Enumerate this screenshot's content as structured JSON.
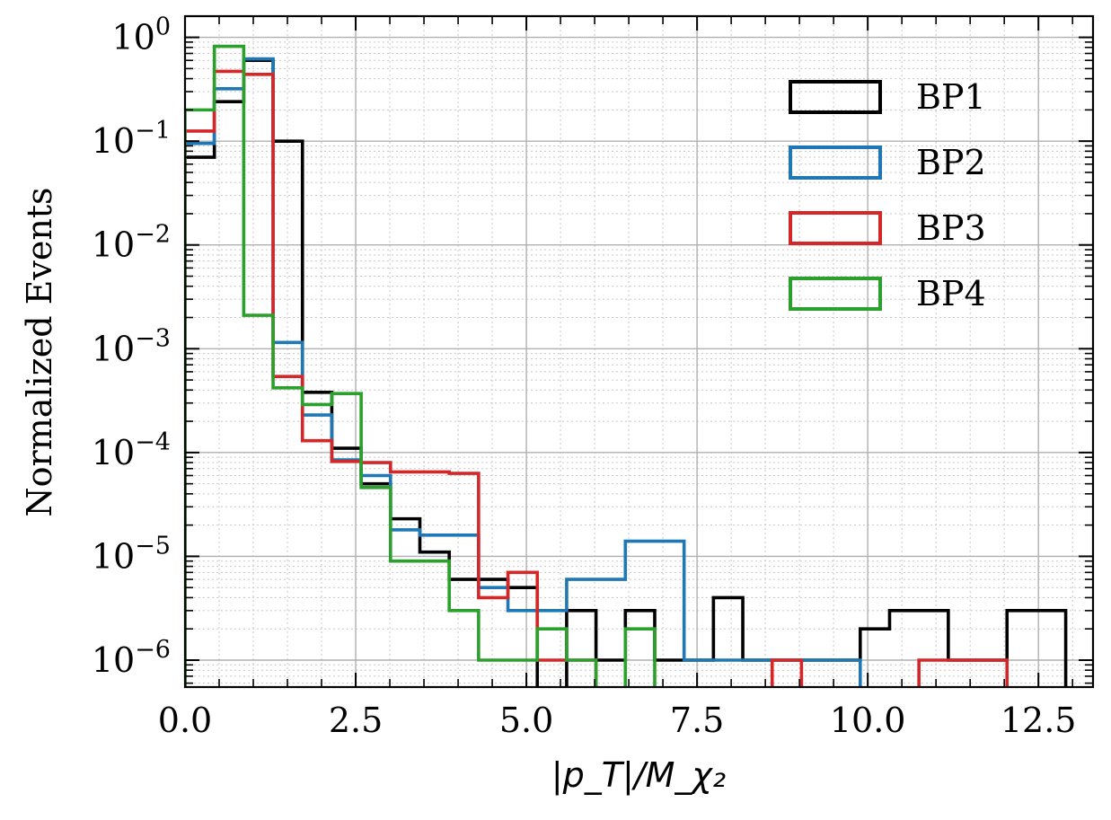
{
  "chart_data": {
    "type": "histogram-step",
    "xlabel": "|p_T|/M_χ₂",
    "ylabel": "Normalized Events",
    "xlim": [
      0,
      13.3
    ],
    "ylim": [
      5.5e-07,
      1.6
    ],
    "yscale": "log",
    "grid": true,
    "legend_position": "upper-right",
    "x_ticks": [
      {
        "value": 0,
        "label": "0.0"
      },
      {
        "value": 2.5,
        "label": "2.5"
      },
      {
        "value": 5,
        "label": "5.0"
      },
      {
        "value": 7.5,
        "label": "7.5"
      },
      {
        "value": 10,
        "label": "10.0"
      },
      {
        "value": 12.5,
        "label": "12.5"
      }
    ],
    "y_ticks": [
      {
        "value": 1,
        "base": "10",
        "exp": "0"
      },
      {
        "value": 0.1,
        "base": "10",
        "exp": "−1"
      },
      {
        "value": 0.01,
        "base": "10",
        "exp": "−2"
      },
      {
        "value": 0.001,
        "base": "10",
        "exp": "−3"
      },
      {
        "value": 0.0001,
        "base": "10",
        "exp": "−4"
      },
      {
        "value": 1e-05,
        "base": "10",
        "exp": "−5"
      },
      {
        "value": 1e-06,
        "base": "10",
        "exp": "−6"
      }
    ],
    "bin_width": 0.43,
    "series": [
      {
        "name": "BP1",
        "color": "#000000",
        "values": [
          0.07,
          0.24,
          0.6,
          0.1,
          0.00038,
          0.00011,
          5e-05,
          2.3e-05,
          1.1e-05,
          6e-06,
          6e-06,
          5e-06,
          0,
          3e-06,
          1e-06,
          3e-06,
          1e-06,
          1e-06,
          4e-06,
          1e-06,
          1e-06,
          1e-06,
          1e-06,
          2e-06,
          3e-06,
          3e-06,
          1e-06,
          1e-06,
          3e-06,
          3e-06
        ]
      },
      {
        "name": "BP2",
        "color": "#1f77b4",
        "values": [
          0.095,
          0.32,
          0.62,
          0.00115,
          0.00023,
          8.5e-05,
          6e-05,
          1.8e-05,
          1.6e-05,
          1.6e-05,
          5e-06,
          3e-06,
          3e-06,
          6e-06,
          6e-06,
          1.4e-05,
          1.4e-05,
          1e-06,
          1e-06,
          1e-06,
          1e-06,
          1e-06,
          1e-06,
          0
        ]
      },
      {
        "name": "BP3",
        "color": "#d62728",
        "values": [
          0.125,
          0.47,
          0.44,
          0.00054,
          0.00013,
          8.2e-05,
          8e-05,
          6.5e-05,
          6.5e-05,
          6.3e-05,
          4e-06,
          7e-06,
          1e-06,
          1e-06,
          0,
          0,
          0,
          0,
          0,
          0,
          1e-06,
          0,
          0,
          0,
          0,
          1e-06,
          1e-06,
          1e-06
        ]
      },
      {
        "name": "BP4",
        "color": "#2ca02c",
        "values": [
          0.2,
          0.82,
          0.0021,
          0.00042,
          0.00029,
          0.00037,
          4.6e-05,
          9e-06,
          9e-06,
          3e-06,
          1e-06,
          1e-06,
          2e-06,
          1e-06,
          0,
          2e-06,
          0
        ]
      }
    ]
  }
}
